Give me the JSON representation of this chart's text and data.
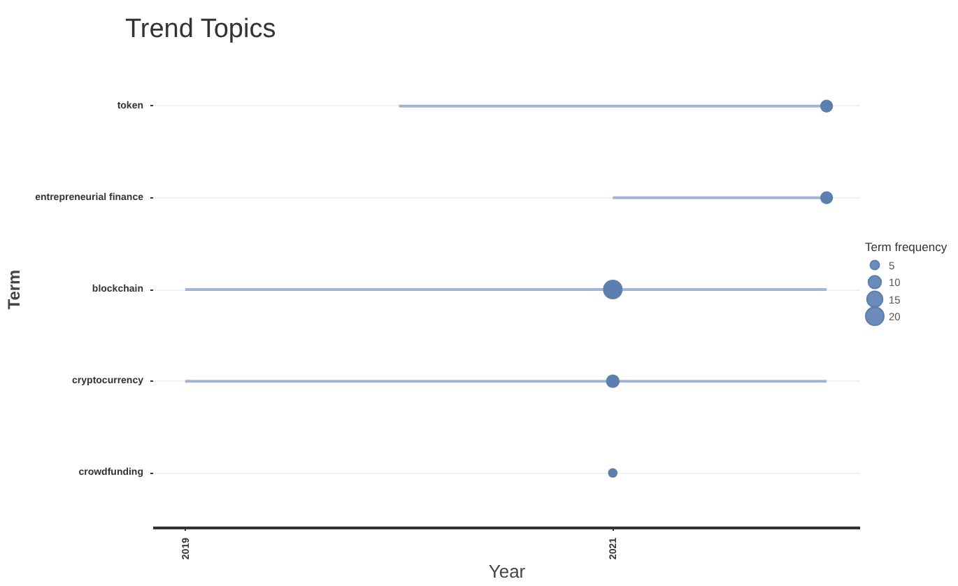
{
  "chart_data": {
    "type": "bubble",
    "orientation": "horizontal",
    "title": "Trend Topics",
    "xlabel": "Year",
    "ylabel": "Term",
    "legend_title": "Term frequency",
    "categories": [
      "token",
      "entrepreneurial finance",
      "blockchain",
      "cryptocurrency",
      "crowdfunding"
    ],
    "series": [
      {
        "color": "#5b80b0",
        "values": [
          2022,
          2022,
          2021,
          2021,
          2021
        ],
        "sizes": [
          8,
          8,
          20,
          9,
          4
        ],
        "errors": [
          [
            2020,
            2022
          ],
          [
            2021,
            2022
          ],
          [
            2019,
            2022
          ],
          [
            2019,
            2022
          ],
          null
        ]
      }
    ],
    "size_legend": [
      5,
      10,
      15,
      20
    ],
    "xlim": [
      2018.85,
      2022.16
    ],
    "xticks": [
      2019,
      2021
    ],
    "grid": "y"
  }
}
